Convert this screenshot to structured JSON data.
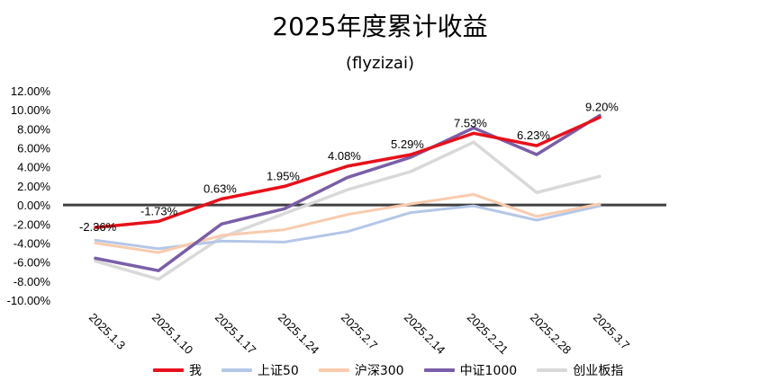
{
  "chart_data": {
    "type": "line",
    "title": "2025年度累计收益",
    "subtitle": "(flyzizai)",
    "categories": [
      "2025.1.3",
      "2025.1.10",
      "2025.1.17",
      "2025.1.24",
      "2025.2.7",
      "2025.2.14",
      "2025.2.21",
      "2025.2.28",
      "2025.3.7"
    ],
    "ylim": [
      -10,
      12
    ],
    "yticks": [
      "12.00%",
      "10.00%",
      "8.00%",
      "6.00%",
      "4.00%",
      "2.00%",
      "0.00%",
      "-2.00%",
      "-4.00%",
      "-6.00%",
      "-8.00%",
      "-10.00%"
    ],
    "legend_position": "bottom",
    "grid": false,
    "series": [
      {
        "name": "我",
        "color": "#e8101a",
        "width": 3.5,
        "values": [
          -2.36,
          -1.73,
          0.63,
          1.95,
          4.08,
          5.29,
          7.53,
          6.23,
          9.2
        ],
        "labels": [
          "-2.36%",
          "-1.73%",
          "0.63%",
          "1.95%",
          "4.08%",
          "5.29%",
          "7.53%",
          "6.23%",
          "9.20%"
        ]
      },
      {
        "name": "上证50",
        "color": "#b4c7e7",
        "width": 3,
        "values": [
          -3.7,
          -4.6,
          -3.8,
          -3.9,
          -2.8,
          -0.8,
          -0.1,
          -1.6,
          -0.1
        ]
      },
      {
        "name": "沪深300",
        "color": "#f8cbad",
        "width": 3,
        "values": [
          -4.0,
          -5.0,
          -3.2,
          -2.6,
          -1.0,
          0.1,
          1.1,
          -1.2,
          0.1
        ]
      },
      {
        "name": "中证1000",
        "color": "#7a5ea8",
        "width": 3.5,
        "values": [
          -5.6,
          -6.9,
          -2.0,
          -0.4,
          2.9,
          5.0,
          8.1,
          5.3,
          9.4
        ]
      },
      {
        "name": "创业板指",
        "color": "#d9d9d9",
        "width": 3.5,
        "values": [
          -5.9,
          -7.8,
          -3.4,
          -0.9,
          1.6,
          3.5,
          6.6,
          1.3,
          3.0
        ]
      }
    ]
  }
}
